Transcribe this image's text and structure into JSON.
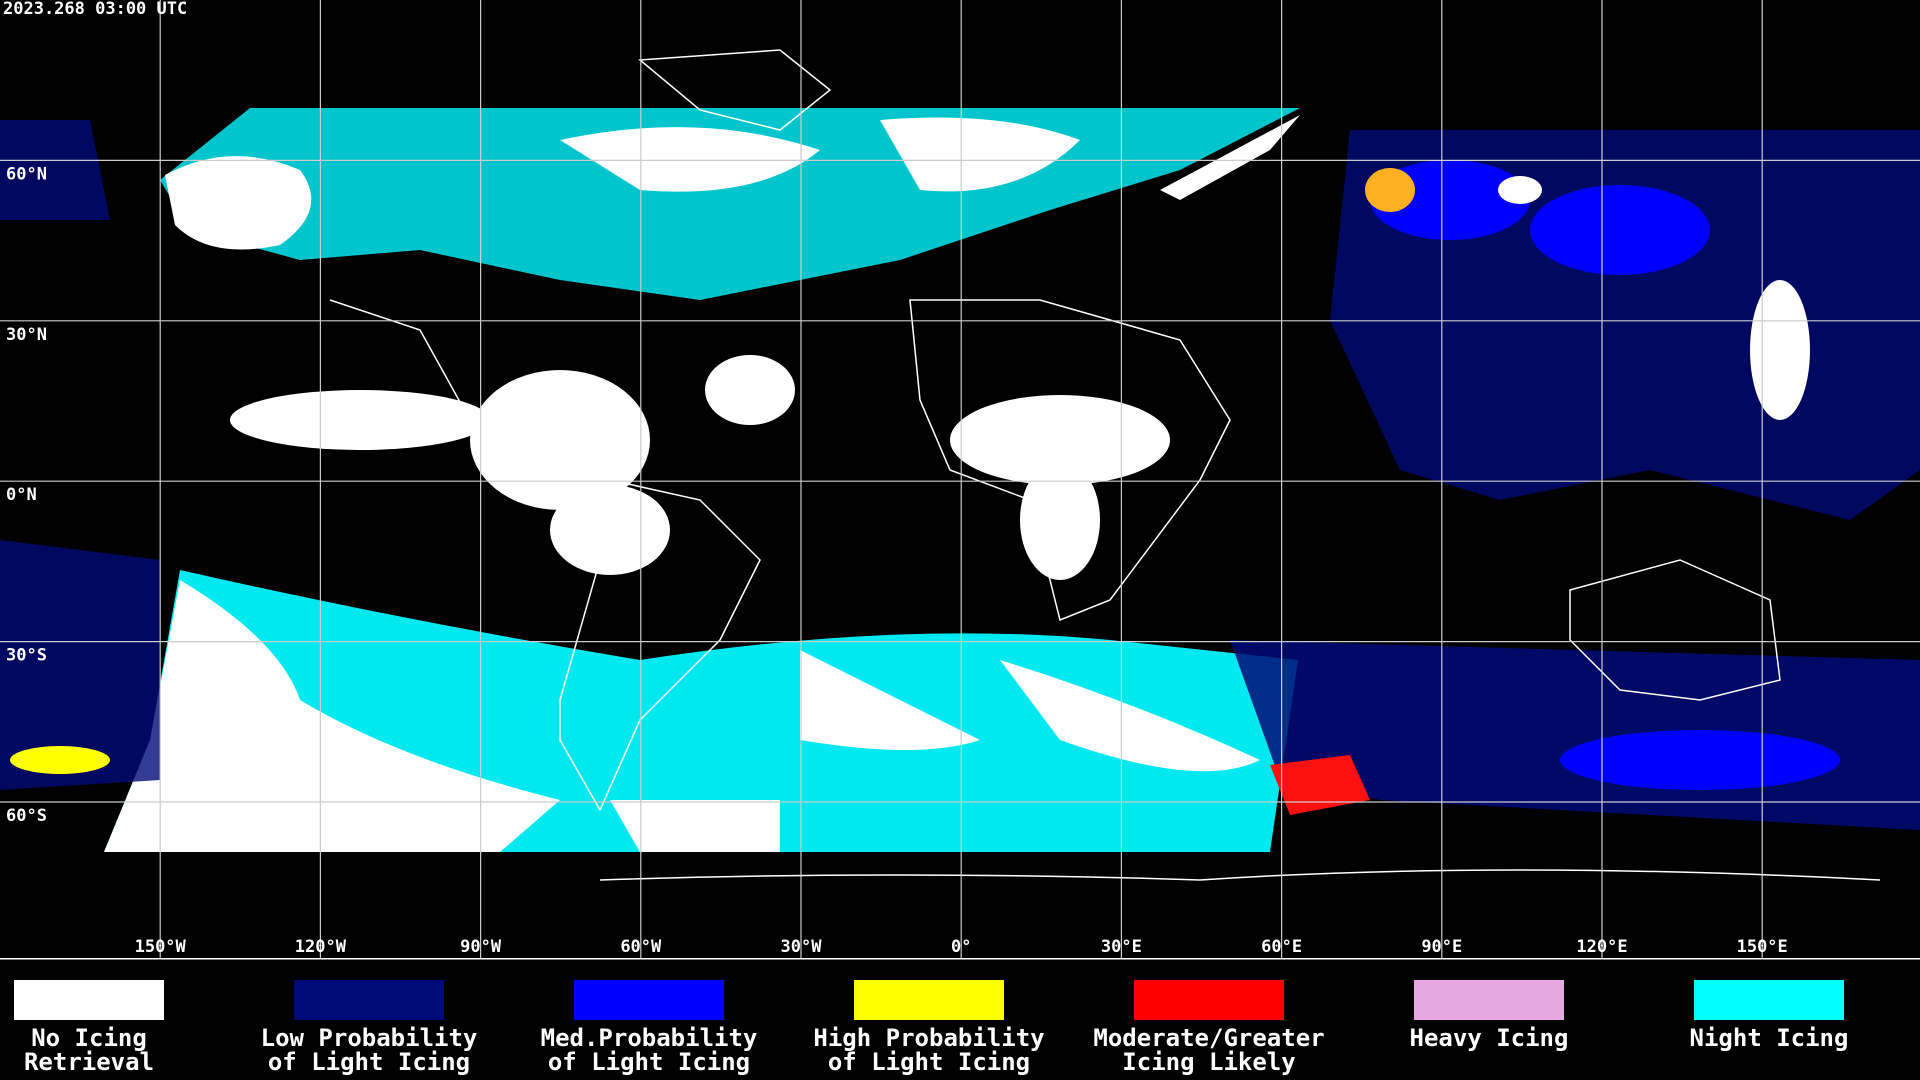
{
  "header": {
    "timestamp": "2023.268 03:00 UTC"
  },
  "map": {
    "latitude_labels": [
      "60°N",
      "30°N",
      "0°N",
      "30°S",
      "60°S"
    ],
    "longitude_labels": [
      "150°W",
      "120°W",
      "90°W",
      "60°W",
      "30°W",
      "0°",
      "30°E",
      "60°E",
      "90°E",
      "120°E",
      "150°E"
    ]
  },
  "legend": {
    "items": [
      {
        "lines": [
          "No Icing",
          "Retrieval"
        ],
        "color": "#ffffff"
      },
      {
        "lines": [
          "Low Probability",
          "of Light Icing"
        ],
        "color": "#000a78"
      },
      {
        "lines": [
          "Med.Probability",
          "of Light Icing"
        ],
        "color": "#0000ff"
      },
      {
        "lines": [
          "High Probability",
          "of Light Icing"
        ],
        "color": "#ffff00"
      },
      {
        "lines": [
          "Moderate/Greater",
          "Icing Likely"
        ],
        "color": "#ff0000"
      },
      {
        "lines": [
          "Heavy Icing"
        ],
        "color": "#e6a8e0"
      },
      {
        "lines": [
          "Night Icing"
        ],
        "color": "#00ffff"
      }
    ]
  }
}
